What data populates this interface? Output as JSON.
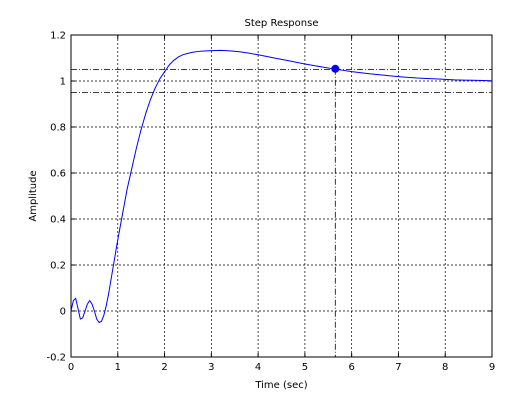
{
  "chart_data": {
    "type": "line",
    "title": "Step Response",
    "xlabel": "Time (sec)",
    "ylabel": "Amplitude",
    "xlim": [
      0,
      9
    ],
    "ylim": [
      -0.2,
      1.2
    ],
    "xticks": [
      0,
      1,
      2,
      3,
      4,
      5,
      6,
      7,
      8,
      9
    ],
    "yticks": [
      -0.2,
      0,
      0.2,
      0.4,
      0.6,
      0.8,
      1,
      1.2
    ],
    "xtick_labels": [
      "0",
      "1",
      "2",
      "3",
      "4",
      "5",
      "6",
      "7",
      "8",
      "9"
    ],
    "ytick_labels": [
      "-0.2",
      "0",
      "0.2",
      "0.4",
      "0.6",
      "0.8",
      "1",
      "1.2"
    ],
    "grid": true,
    "series": [
      {
        "x": [
          0,
          0.05,
          0.1,
          0.15,
          0.2,
          0.25,
          0.3,
          0.35,
          0.4,
          0.45,
          0.5,
          0.55,
          0.6,
          0.65,
          0.7,
          0.75,
          0.8,
          0.85,
          0.9,
          0.95,
          1.0,
          1.1,
          1.2,
          1.3,
          1.4,
          1.5,
          1.6,
          1.7,
          1.8,
          1.9,
          2.0,
          2.1,
          2.2,
          2.3,
          2.4,
          2.5,
          2.6,
          2.7,
          2.8,
          2.9,
          3.0,
          3.2,
          3.4,
          3.6,
          3.8,
          4.0,
          4.2,
          4.4,
          4.6,
          4.8,
          5.0,
          5.2,
          5.4,
          5.6,
          5.8,
          6.0,
          6.2,
          6.4,
          6.6,
          6.8,
          7.0,
          7.2,
          7.4,
          7.6,
          7.8,
          8.0,
          8.2,
          8.4,
          8.6,
          8.8,
          9.0
        ],
        "y": [
          0,
          0.045,
          0.055,
          0.01,
          -0.035,
          -0.03,
          0.0,
          0.03,
          0.045,
          0.03,
          0.0,
          -0.035,
          -0.05,
          -0.045,
          -0.02,
          0.02,
          0.07,
          0.13,
          0.19,
          0.25,
          0.31,
          0.42,
          0.53,
          0.62,
          0.71,
          0.79,
          0.86,
          0.92,
          0.97,
          1.01,
          1.04,
          1.07,
          1.09,
          1.105,
          1.115,
          1.12,
          1.125,
          1.128,
          1.13,
          1.131,
          1.132,
          1.133,
          1.131,
          1.127,
          1.121,
          1.114,
          1.106,
          1.098,
          1.09,
          1.082,
          1.074,
          1.067,
          1.06,
          1.053,
          1.047,
          1.041,
          1.036,
          1.031,
          1.027,
          1.023,
          1.019,
          1.016,
          1.013,
          1.011,
          1.009,
          1.007,
          1.005,
          1.004,
          1.003,
          1.002,
          1.001
        ],
        "color": "#0000ff"
      }
    ],
    "marker": {
      "x": 5.65,
      "y": 1.053,
      "color": "#0000ff"
    },
    "settling_band": [
      0.95,
      1.05
    ],
    "settling_time": 5.65
  }
}
